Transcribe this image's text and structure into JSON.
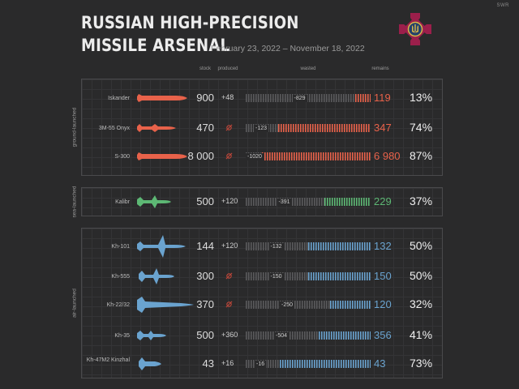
{
  "header": {
    "title_line1": "RUSSIAN HIGH-PRECISION",
    "title_line2": "MISSILE ARSENAL",
    "subtitle": "February 23, 2022 – November 18, 2022",
    "credit": "SWR"
  },
  "columns": {
    "stock": "stock",
    "produced": "produced",
    "wasted": "wasted",
    "remains": "remains"
  },
  "colors": {
    "ground": "#e8624a",
    "sea": "#5db874",
    "air": "#6aa3cf",
    "wasted": "#5a5a5c",
    "emblem": "#9b1f4b",
    "emblem_gold": "#d9b64a"
  },
  "chart_data": {
    "type": "bar",
    "title": "RUSSIAN HIGH-PRECISION MISSILE ARSENAL",
    "subtitle": "February 23, 2022 – November 18, 2022",
    "groups": [
      {
        "label": "ground-launched",
        "color": "#e8624a",
        "missiles": [
          {
            "name": "Iskander",
            "stock": "900",
            "produced": "+48",
            "produced_value": 48,
            "wasted": "-829",
            "wasted_value": 829,
            "remains": "119",
            "remains_value": 119,
            "percent": "13%"
          },
          {
            "name": "3M-55 Onyx",
            "stock": "470",
            "produced": null,
            "produced_value": 0,
            "wasted": "-123",
            "wasted_value": 123,
            "remains": "347",
            "remains_value": 347,
            "percent": "74%"
          },
          {
            "name": "S-300",
            "stock": "8 000",
            "produced": null,
            "produced_value": 0,
            "wasted": "-1020",
            "wasted_value": 1020,
            "remains": "6 980",
            "remains_value": 6980,
            "percent": "87%"
          }
        ]
      },
      {
        "label": "sea-launched",
        "color": "#5db874",
        "missiles": [
          {
            "name": "Kalibr",
            "stock": "500",
            "produced": "+120",
            "produced_value": 120,
            "wasted": "-391",
            "wasted_value": 391,
            "remains": "229",
            "remains_value": 229,
            "percent": "37%"
          }
        ]
      },
      {
        "label": "air-launched",
        "color": "#6aa3cf",
        "missiles": [
          {
            "name": "Kh-101",
            "stock": "144",
            "produced": "+120",
            "produced_value": 120,
            "wasted": "-132",
            "wasted_value": 132,
            "remains": "132",
            "remains_value": 132,
            "percent": "50%"
          },
          {
            "name": "Kh-555",
            "stock": "300",
            "produced": null,
            "produced_value": 0,
            "wasted": "-150",
            "wasted_value": 150,
            "remains": "150",
            "remains_value": 150,
            "percent": "50%"
          },
          {
            "name": "Kh-22/32",
            "stock": "370",
            "produced": null,
            "produced_value": 0,
            "wasted": "-250",
            "wasted_value": 250,
            "remains": "120",
            "remains_value": 120,
            "percent": "32%"
          },
          {
            "name": "Kh-35",
            "stock": "500",
            "produced": "+360",
            "produced_value": 360,
            "wasted": "-504",
            "wasted_value": 504,
            "remains": "356",
            "remains_value": 356,
            "percent": "41%"
          },
          {
            "name": "Kh-47M2 Kinzhal",
            "stock": "43",
            "produced": "+16",
            "produced_value": 16,
            "wasted": "-16",
            "wasted_value": 16,
            "remains": "43",
            "remains_value": 43,
            "percent": "73%"
          }
        ]
      }
    ]
  }
}
